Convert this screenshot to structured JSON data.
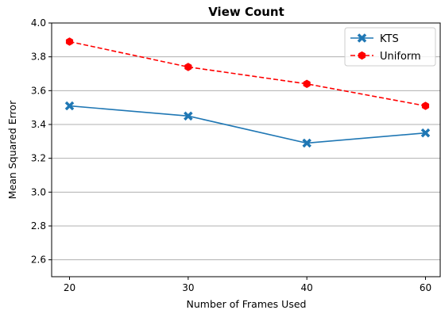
{
  "chart_data": {
    "type": "line",
    "title": "View Count",
    "xlabel": "Number of Frames Used",
    "ylabel": "Mean Squared Error",
    "categories": [
      "20",
      "30",
      "40",
      "60"
    ],
    "ylim": [
      2.5,
      4.0
    ],
    "yticks": [
      "2.6",
      "2.8",
      "3.0",
      "3.2",
      "3.4",
      "3.6",
      "3.8",
      "4.0"
    ],
    "grid": "horizontal",
    "legend_position": "top-right",
    "series": [
      {
        "name": "KTS",
        "values": [
          3.51,
          3.45,
          3.29,
          3.35
        ],
        "color": "#1f77b4",
        "line_style": "solid",
        "marker": "X"
      },
      {
        "name": "Uniform",
        "values": [
          3.89,
          3.74,
          3.64,
          3.51
        ],
        "color": "#ff0000",
        "line_style": "dashed",
        "marker": "hexagon"
      }
    ]
  }
}
